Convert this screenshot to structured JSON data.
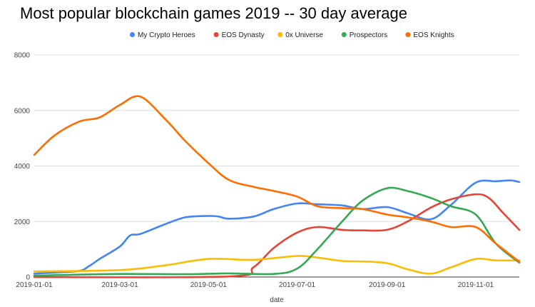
{
  "chart_data": {
    "type": "line",
    "title": "Most popular blockchain games 2019 -- 30 day average",
    "xlabel": "date",
    "ylabel": "",
    "x_range": [
      "2019-01-01",
      "2019-12-01"
    ],
    "ylim": [
      0,
      8000
    ],
    "grid": true,
    "legend_position": "top",
    "x_ticks": [
      "2019-01-01",
      "2019-03-01",
      "2019-05-01",
      "2019-07-01",
      "2019-09-01",
      "2019-11-01"
    ],
    "y_ticks": [
      0,
      2000,
      4000,
      6000,
      8000
    ],
    "series": [
      {
        "name": "My Crypto Heroes",
        "color": "#4285f4",
        "points": [
          [
            "2019-01-01",
            120
          ],
          [
            "2019-01-15",
            160
          ],
          [
            "2019-02-01",
            220
          ],
          [
            "2019-02-08",
            400
          ],
          [
            "2019-02-15",
            650
          ],
          [
            "2019-03-01",
            1100
          ],
          [
            "2019-03-08",
            1500
          ],
          [
            "2019-03-15",
            1550
          ],
          [
            "2019-04-01",
            1900
          ],
          [
            "2019-04-15",
            2150
          ],
          [
            "2019-05-01",
            2200
          ],
          [
            "2019-05-08",
            2180
          ],
          [
            "2019-05-15",
            2100
          ],
          [
            "2019-06-01",
            2180
          ],
          [
            "2019-06-15",
            2450
          ],
          [
            "2019-07-01",
            2650
          ],
          [
            "2019-07-15",
            2620
          ],
          [
            "2019-08-01",
            2580
          ],
          [
            "2019-08-15",
            2450
          ],
          [
            "2019-09-01",
            2520
          ],
          [
            "2019-09-15",
            2300
          ],
          [
            "2019-10-01",
            2080
          ],
          [
            "2019-10-15",
            2600
          ],
          [
            "2019-11-01",
            3400
          ],
          [
            "2019-11-15",
            3450
          ],
          [
            "2019-11-25",
            3480
          ],
          [
            "2019-12-01",
            3420
          ]
        ]
      },
      {
        "name": "EOS Dynasty",
        "color": "#ea4335",
        "points": [
          [
            "2019-01-01",
            0
          ],
          [
            "2019-05-15",
            20
          ],
          [
            "2019-06-01",
            350
          ],
          [
            "2019-06-15",
            1050
          ],
          [
            "2019-07-01",
            1600
          ],
          [
            "2019-07-15",
            1800
          ],
          [
            "2019-08-01",
            1700
          ],
          [
            "2019-08-15",
            1680
          ],
          [
            "2019-09-01",
            1700
          ],
          [
            "2019-09-15",
            2000
          ],
          [
            "2019-10-01",
            2500
          ],
          [
            "2019-10-15",
            2800
          ],
          [
            "2019-11-01",
            2980
          ],
          [
            "2019-11-10",
            2850
          ],
          [
            "2019-11-20",
            2300
          ],
          [
            "2019-12-01",
            1700
          ]
        ]
      },
      {
        "name": "0x Universe",
        "color": "#fbbc04",
        "points": [
          [
            "2019-01-01",
            200
          ],
          [
            "2019-03-01",
            250
          ],
          [
            "2019-04-01",
            420
          ],
          [
            "2019-05-01",
            650
          ],
          [
            "2019-06-01",
            620
          ],
          [
            "2019-07-01",
            760
          ],
          [
            "2019-07-15",
            700
          ],
          [
            "2019-08-01",
            580
          ],
          [
            "2019-08-15",
            560
          ],
          [
            "2019-09-01",
            500
          ],
          [
            "2019-09-15",
            280
          ],
          [
            "2019-10-01",
            120
          ],
          [
            "2019-10-15",
            350
          ],
          [
            "2019-11-01",
            650
          ],
          [
            "2019-11-15",
            600
          ],
          [
            "2019-12-01",
            600
          ]
        ]
      },
      {
        "name": "Prospectors",
        "color": "#34a853",
        "points": [
          [
            "2019-01-01",
            50
          ],
          [
            "2019-03-01",
            110
          ],
          [
            "2019-04-15",
            100
          ],
          [
            "2019-05-15",
            130
          ],
          [
            "2019-06-15",
            110
          ],
          [
            "2019-07-01",
            300
          ],
          [
            "2019-07-15",
            1000
          ],
          [
            "2019-08-01",
            2000
          ],
          [
            "2019-08-15",
            2750
          ],
          [
            "2019-09-01",
            3200
          ],
          [
            "2019-09-15",
            3100
          ],
          [
            "2019-10-01",
            2850
          ],
          [
            "2019-10-15",
            2550
          ],
          [
            "2019-11-01",
            2250
          ],
          [
            "2019-11-15",
            1200
          ],
          [
            "2019-12-01",
            520
          ]
        ]
      },
      {
        "name": "EOS Knights",
        "color": "#ff6d01",
        "points": [
          [
            "2019-01-01",
            4400
          ],
          [
            "2019-01-15",
            5100
          ],
          [
            "2019-02-01",
            5600
          ],
          [
            "2019-02-15",
            5750
          ],
          [
            "2019-03-01",
            6200
          ],
          [
            "2019-03-15",
            6500
          ],
          [
            "2019-04-01",
            5700
          ],
          [
            "2019-04-15",
            4900
          ],
          [
            "2019-05-01",
            4100
          ],
          [
            "2019-05-15",
            3500
          ],
          [
            "2019-06-01",
            3250
          ],
          [
            "2019-06-15",
            3100
          ],
          [
            "2019-07-01",
            2900
          ],
          [
            "2019-07-15",
            2550
          ],
          [
            "2019-08-01",
            2480
          ],
          [
            "2019-08-15",
            2450
          ],
          [
            "2019-09-01",
            2250
          ],
          [
            "2019-09-15",
            2150
          ],
          [
            "2019-10-01",
            2000
          ],
          [
            "2019-10-15",
            1800
          ],
          [
            "2019-11-01",
            1800
          ],
          [
            "2019-11-15",
            1200
          ],
          [
            "2019-12-01",
            550
          ]
        ]
      }
    ]
  }
}
